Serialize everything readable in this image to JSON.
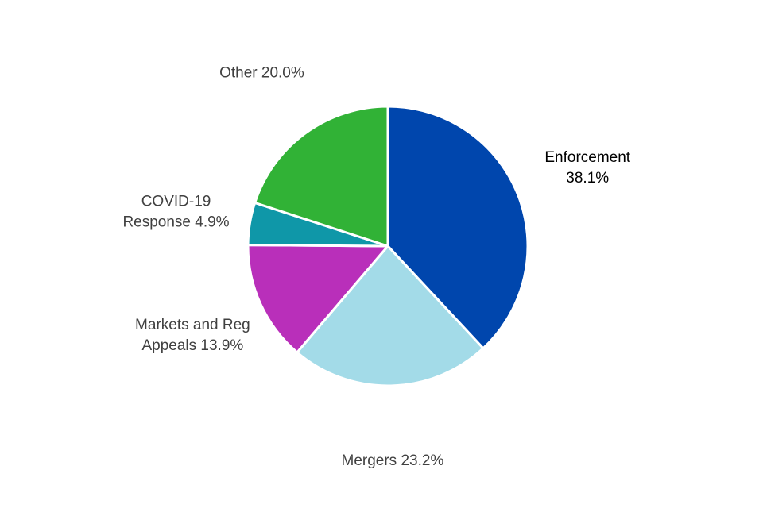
{
  "chart_data": {
    "type": "pie",
    "title": "",
    "start": "12 o'clock",
    "direction": "clockwise",
    "slices": [
      {
        "name": "Enforcement",
        "value": 38.1,
        "label_lines": [
          "Enforcement",
          "38.1%"
        ],
        "color": "#0046AD"
      },
      {
        "name": "Mergers",
        "value": 23.2,
        "label_lines": [
          "Mergers 23.2%"
        ],
        "color": "#A3DBE8"
      },
      {
        "name": "Markets and Reg Appeals",
        "value": 13.9,
        "label_lines": [
          "Markets and Reg",
          "Appeals 13.9%"
        ],
        "color": "#B92FBA"
      },
      {
        "name": "COVID-19 Response",
        "value": 4.9,
        "label_lines": [
          "COVID-19",
          "Response 4.9%"
        ],
        "color": "#0F97A8"
      },
      {
        "name": "Other",
        "value": 20.0,
        "label_lines": [
          "Other 20.0%"
        ],
        "color": "#31B236"
      }
    ],
    "label_colors": {
      "primary": "#000000",
      "secondary": "#404040"
    },
    "slice_separator_color": "#ffffff"
  }
}
